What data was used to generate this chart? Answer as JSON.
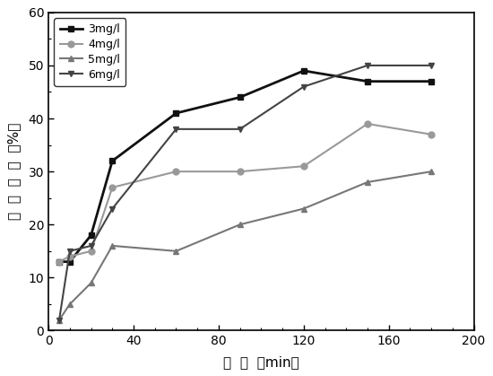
{
  "series": {
    "3mg/l": {
      "x": [
        5,
        10,
        20,
        30,
        60,
        90,
        120,
        150,
        180
      ],
      "y": [
        13,
        13,
        18,
        32,
        41,
        44,
        49,
        47,
        47
      ],
      "color": "#111111",
      "marker": "s",
      "linewidth": 2.0,
      "markersize": 5
    },
    "4mg/l": {
      "x": [
        5,
        10,
        20,
        30,
        60,
        90,
        120,
        150,
        180
      ],
      "y": [
        13,
        14,
        15,
        27,
        30,
        30,
        31,
        39,
        37
      ],
      "color": "#999999",
      "marker": "o",
      "linewidth": 1.5,
      "markersize": 5
    },
    "5mg/l": {
      "x": [
        5,
        10,
        20,
        30,
        60,
        90,
        120,
        150,
        180
      ],
      "y": [
        2,
        5,
        9,
        16,
        15,
        20,
        23,
        28,
        30
      ],
      "color": "#777777",
      "marker": "^",
      "linewidth": 1.5,
      "markersize": 5
    },
    "6mg/l": {
      "x": [
        5,
        10,
        20,
        30,
        60,
        90,
        120,
        150,
        180
      ],
      "y": [
        2,
        15,
        16,
        23,
        38,
        38,
        46,
        50,
        50
      ],
      "color": "#444444",
      "marker": "v",
      "linewidth": 1.5,
      "markersize": 5
    }
  },
  "xlabel": "时  间  （min）",
  "ylabel": "去  除  效  率  （%）",
  "xlim": [
    0,
    200
  ],
  "ylim": [
    0,
    60
  ],
  "xticks": [
    0,
    40,
    80,
    120,
    160,
    200
  ],
  "yticks": [
    0,
    10,
    20,
    30,
    40,
    50,
    60
  ],
  "legend_order": [
    "3mg/l",
    "4mg/l",
    "5mg/l",
    "6mg/l"
  ],
  "background_color": "#ffffff",
  "minor_xtick_interval": 10,
  "minor_ytick_interval": 5
}
